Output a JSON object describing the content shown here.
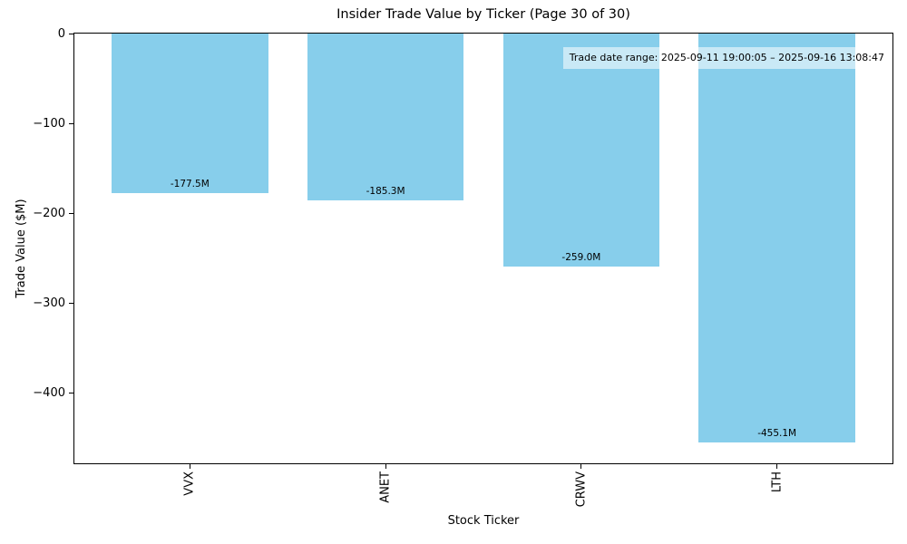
{
  "chart_data": {
    "type": "bar",
    "title": "Insider Trade Value by Ticker (Page 30 of 30)",
    "xlabel": "Stock Ticker",
    "ylabel": "Trade Value ($M)",
    "categories": [
      "VVX",
      "ANET",
      "CRWV",
      "LTH"
    ],
    "values": [
      -177.5,
      -185.3,
      -259.0,
      -455.1
    ],
    "bar_labels": [
      "-177.5M",
      "-185.3M",
      "-259.0M",
      "-455.1M"
    ],
    "yticks": [
      0,
      -100,
      -200,
      -300,
      -400
    ],
    "ytick_labels": [
      "0",
      "−100",
      "−200",
      "−300",
      "−400"
    ],
    "ylim": [
      -477.9,
      0
    ],
    "bar_width_fraction": 0.8,
    "annotation": "Trade date range: 2025-09-11 19:00:05 – 2025-09-16 13:08:47",
    "bar_color": "#87CEEB",
    "background_color": "#ffffff",
    "annotation_bg": "rgba(255,255,255,0.55)",
    "grid": false,
    "legend": "none"
  }
}
